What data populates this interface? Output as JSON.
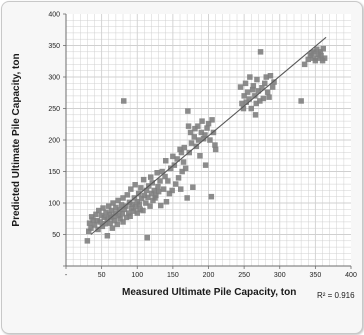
{
  "chart_data": {
    "type": "scatter",
    "title": "",
    "xlabel": "Measured Ultimate Pile Capacity, ton",
    "ylabel": "Predicted Ultimate Pile Capacity, ton",
    "xlim": [
      0,
      400
    ],
    "ylim": [
      0,
      400
    ],
    "x_ticks": [
      "",
      "50",
      "100",
      "150",
      "200",
      "250",
      "300",
      "350",
      "400"
    ],
    "y_ticks": [
      "",
      "50",
      "100",
      "150",
      "200",
      "250",
      "300",
      "350",
      "400"
    ],
    "grid": true,
    "annotation": "R² = 0.916",
    "colors": {
      "marker": "#7f7f7f",
      "trendline": "#595959",
      "grid": "#d0d0d0",
      "axis": "#6e6e6e"
    },
    "trendline": {
      "x": [
        35,
        365
      ],
      "y": [
        50,
        363
      ]
    },
    "points": [
      [
        30,
        40
      ],
      [
        32,
        55
      ],
      [
        33,
        68
      ],
      [
        35,
        60
      ],
      [
        36,
        78
      ],
      [
        38,
        73
      ],
      [
        40,
        65
      ],
      [
        42,
        82
      ],
      [
        44,
        72
      ],
      [
        45,
        58
      ],
      [
        46,
        88
      ],
      [
        48,
        70
      ],
      [
        50,
        80
      ],
      [
        51,
        63
      ],
      [
        52,
        92
      ],
      [
        54,
        77
      ],
      [
        55,
        67
      ],
      [
        56,
        85
      ],
      [
        58,
        74
      ],
      [
        58,
        48
      ],
      [
        60,
        95
      ],
      [
        61,
        82
      ],
      [
        62,
        68
      ],
      [
        63,
        77
      ],
      [
        64,
        88
      ],
      [
        65,
        60
      ],
      [
        66,
        100
      ],
      [
        67,
        79
      ],
      [
        68,
        72
      ],
      [
        70,
        84
      ],
      [
        70,
        93
      ],
      [
        72,
        66
      ],
      [
        73,
        104
      ],
      [
        74,
        80
      ],
      [
        75,
        89
      ],
      [
        76,
        75
      ],
      [
        78,
        97
      ],
      [
        79,
        83
      ],
      [
        80,
        70
      ],
      [
        80,
        108
      ],
      [
        81,
        262
      ],
      [
        82,
        90
      ],
      [
        84,
        95
      ],
      [
        85,
        77
      ],
      [
        86,
        113
      ],
      [
        88,
        84
      ],
      [
        89,
        101
      ],
      [
        90,
        79
      ],
      [
        91,
        122
      ],
      [
        92,
        92
      ],
      [
        93,
        98
      ],
      [
        95,
        87
      ],
      [
        96,
        108
      ],
      [
        97,
        129
      ],
      [
        98,
        94
      ],
      [
        100,
        102
      ],
      [
        100,
        84
      ],
      [
        102,
        115
      ],
      [
        103,
        98
      ],
      [
        104,
        90
      ],
      [
        105,
        124
      ],
      [
        106,
        107
      ],
      [
        108,
        88
      ],
      [
        109,
        137
      ],
      [
        110,
        112
      ],
      [
        112,
        100
      ],
      [
        113,
        120
      ],
      [
        114,
        45
      ],
      [
        115,
        109
      ],
      [
        116,
        127
      ],
      [
        118,
        95
      ],
      [
        119,
        141
      ],
      [
        120,
        115
      ],
      [
        121,
        132
      ],
      [
        122,
        104
      ],
      [
        124,
        120
      ],
      [
        125,
        108
      ],
      [
        126,
        112
      ],
      [
        128,
        148
      ],
      [
        129,
        126
      ],
      [
        130,
        118
      ],
      [
        132,
        135
      ],
      [
        133,
        96
      ],
      [
        135,
        150
      ],
      [
        137,
        122
      ],
      [
        139,
        142
      ],
      [
        140,
        167
      ],
      [
        141,
        102
      ],
      [
        143,
        135
      ],
      [
        145,
        115
      ],
      [
        147,
        155
      ],
      [
        149,
        120
      ],
      [
        150,
        174
      ],
      [
        152,
        160
      ],
      [
        154,
        130
      ],
      [
        156,
        170
      ],
      [
        158,
        140
      ],
      [
        160,
        185
      ],
      [
        161,
        122
      ],
      [
        162,
        180
      ],
      [
        163,
        150
      ],
      [
        165,
        165
      ],
      [
        166,
        188
      ],
      [
        168,
        155
      ],
      [
        170,
        108
      ],
      [
        171,
        246
      ],
      [
        172,
        222
      ],
      [
        173,
        180
      ],
      [
        175,
        212
      ],
      [
        176,
        195
      ],
      [
        178,
        125
      ],
      [
        180,
        205
      ],
      [
        181,
        218
      ],
      [
        183,
        190
      ],
      [
        185,
        222
      ],
      [
        186,
        200
      ],
      [
        188,
        175
      ],
      [
        190,
        212
      ],
      [
        191,
        230
      ],
      [
        193,
        202
      ],
      [
        195,
        208
      ],
      [
        196,
        160
      ],
      [
        198,
        219
      ],
      [
        200,
        226
      ],
      [
        202,
        200
      ],
      [
        204,
        110
      ],
      [
        205,
        232
      ],
      [
        207,
        212
      ],
      [
        209,
        192
      ],
      [
        210,
        185
      ],
      [
        245,
        284
      ],
      [
        247,
        258
      ],
      [
        249,
        250
      ],
      [
        250,
        270
      ],
      [
        252,
        290
      ],
      [
        253,
        260
      ],
      [
        255,
        276
      ],
      [
        257,
        265
      ],
      [
        258,
        300
      ],
      [
        260,
        250
      ],
      [
        262,
        280
      ],
      [
        263,
        286
      ],
      [
        265,
        270
      ],
      [
        266,
        240
      ],
      [
        267,
        258
      ],
      [
        268,
        296
      ],
      [
        270,
        278
      ],
      [
        272,
        262
      ],
      [
        273,
        340
      ],
      [
        275,
        283
      ],
      [
        277,
        266
      ],
      [
        279,
        290
      ],
      [
        281,
        300
      ],
      [
        283,
        276
      ],
      [
        285,
        268
      ],
      [
        287,
        302
      ],
      [
        290,
        284
      ],
      [
        292,
        292
      ],
      [
        330,
        262
      ],
      [
        335,
        320
      ],
      [
        340,
        328
      ],
      [
        343,
        334
      ],
      [
        345,
        338
      ],
      [
        347,
        330
      ],
      [
        348,
        340
      ],
      [
        350,
        326
      ],
      [
        352,
        344
      ],
      [
        354,
        336
      ],
      [
        355,
        330
      ],
      [
        357,
        340
      ],
      [
        358,
        334
      ],
      [
        360,
        326
      ],
      [
        361,
        345
      ],
      [
        363,
        330
      ]
    ]
  }
}
